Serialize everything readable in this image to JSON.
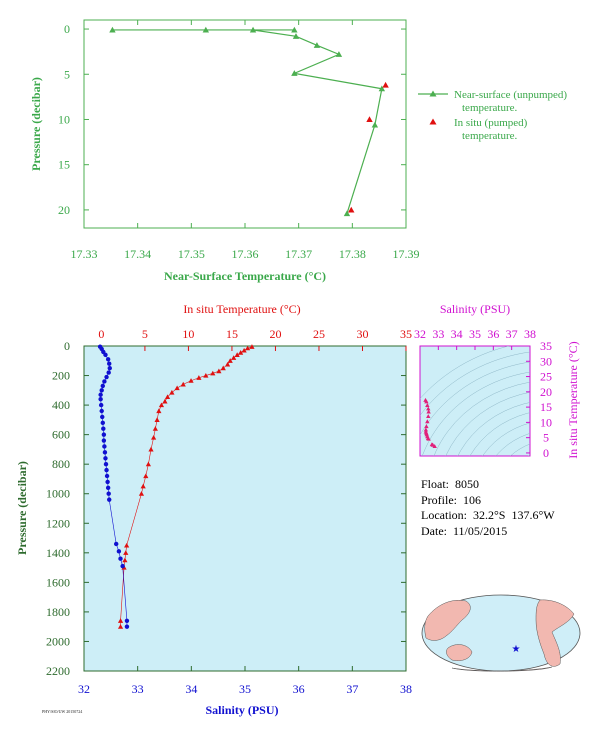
{
  "colors": {
    "green": "#4caf50",
    "green_text": "#3aa84a",
    "red": "#e01010",
    "blue": "#1010d0",
    "magenta": "#d010d0",
    "pink": "#e0207a",
    "panel_bg": "#cdeef7",
    "axis_dark": "#2e6b2e",
    "land": "#f2b8b0",
    "ocean": "#cfeef8"
  },
  "meta": {
    "float": "Float:  8050",
    "profile": "Profile:  106",
    "location": "Location:  32.2°S  137.6°W",
    "date": "Date:  11/05/2015"
  },
  "footer": "PHY/SIO/UW  20150724",
  "chart_data": [
    {
      "type": "line",
      "title": "",
      "xlabel": "Near-Surface Temperature (°C)",
      "ylabel": "Pressure (decibar)",
      "xlim": [
        17.33,
        17.39
      ],
      "ylim": [
        22,
        -1
      ],
      "x_ticks": [
        "17.33",
        "17.34",
        "17.35",
        "17.36",
        "17.37",
        "17.38",
        "17.39"
      ],
      "y_ticks": [
        "0",
        "5",
        "10",
        "15",
        "20"
      ],
      "legend_position": "right",
      "series": [
        {
          "name": "Near-surface (unpumped) temperature.",
          "marker": "triangle",
          "color": "green",
          "points": [
            [
              17.3692,
              0.1
            ],
            [
              17.3353,
              0.1
            ],
            [
              17.3527,
              0.1
            ],
            [
              17.3615,
              0.1
            ],
            [
              17.3695,
              0.8
            ],
            [
              17.3734,
              1.8
            ],
            [
              17.3775,
              2.8
            ],
            [
              17.3692,
              4.9
            ],
            [
              17.3855,
              6.6
            ],
            [
              17.3842,
              10.6
            ],
            [
              17.379,
              20.4
            ]
          ]
        },
        {
          "name": "In situ (pumped) temperature.",
          "marker": "triangle",
          "color": "red",
          "points": [
            [
              17.3862,
              6.2
            ],
            [
              17.3832,
              10.0
            ],
            [
              17.3798,
              20.0
            ]
          ]
        }
      ]
    },
    {
      "type": "line",
      "title": "",
      "xlabel": "Salinity (PSU)",
      "x2label": "In situ Temperature (°C)",
      "ylabel": "Pressure (decibar)",
      "xlim": [
        32,
        38
      ],
      "x2lim": [
        -2,
        35
      ],
      "ylim": [
        2200,
        0
      ],
      "x_ticks": [
        "32",
        "33",
        "34",
        "35",
        "36",
        "37",
        "38"
      ],
      "x2_ticks": [
        "0",
        "5",
        "10",
        "15",
        "20",
        "25",
        "30",
        "35"
      ],
      "y_ticks": [
        "0",
        "200",
        "400",
        "600",
        "800",
        "1000",
        "1200",
        "1400",
        "1600",
        "1800",
        "2000",
        "2200"
      ],
      "series": [
        {
          "name": "In situ Temperature (°C)",
          "axis": "top",
          "color": "red",
          "marker": "triangle",
          "points": [
            [
              17.3,
              5
            ],
            [
              16.8,
              15
            ],
            [
              16.4,
              30
            ],
            [
              16.0,
              45
            ],
            [
              15.6,
              60
            ],
            [
              15.2,
              80
            ],
            [
              14.8,
              100
            ],
            [
              14.5,
              125
            ],
            [
              14.0,
              150
            ],
            [
              13.5,
              170
            ],
            [
              12.8,
              185
            ],
            [
              12.0,
              200
            ],
            [
              11.2,
              215
            ],
            [
              10.3,
              235
            ],
            [
              9.4,
              260
            ],
            [
              8.7,
              285
            ],
            [
              8.1,
              315
            ],
            [
              7.6,
              345
            ],
            [
              7.3,
              375
            ],
            [
              6.9,
              400
            ],
            [
              6.6,
              440
            ],
            [
              6.4,
              500
            ],
            [
              6.2,
              560
            ],
            [
              6.0,
              620
            ],
            [
              5.7,
              700
            ],
            [
              5.4,
              800
            ],
            [
              5.1,
              880
            ],
            [
              4.8,
              950
            ],
            [
              4.6,
              1000
            ],
            [
              2.9,
              1350
            ],
            [
              2.8,
              1400
            ],
            [
              2.7,
              1450
            ],
            [
              2.6,
              1500
            ],
            [
              2.2,
              1860
            ],
            [
              2.2,
              1900
            ]
          ]
        },
        {
          "name": "Salinity (PSU)",
          "axis": "bottom",
          "color": "blue",
          "marker": "circle",
          "points": [
            [
              32.3,
              5
            ],
            [
              32.33,
              20
            ],
            [
              32.36,
              40
            ],
            [
              32.4,
              60
            ],
            [
              32.45,
              90
            ],
            [
              32.47,
              120
            ],
            [
              32.48,
              150
            ],
            [
              32.46,
              180
            ],
            [
              32.42,
              210
            ],
            [
              32.38,
              240
            ],
            [
              32.35,
              270
            ],
            [
              32.33,
              300
            ],
            [
              32.31,
              330
            ],
            [
              32.31,
              360
            ],
            [
              32.32,
              400
            ],
            [
              32.33,
              440
            ],
            [
              32.34,
              480
            ],
            [
              32.35,
              520
            ],
            [
              32.36,
              560
            ],
            [
              32.37,
              600
            ],
            [
              32.37,
              640
            ],
            [
              32.38,
              680
            ],
            [
              32.39,
              720
            ],
            [
              32.4,
              760
            ],
            [
              32.41,
              800
            ],
            [
              32.42,
              840
            ],
            [
              32.43,
              880
            ],
            [
              32.44,
              920
            ],
            [
              32.45,
              960
            ],
            [
              32.46,
              1000
            ],
            [
              32.47,
              1040
            ],
            [
              32.6,
              1340
            ],
            [
              32.65,
              1390
            ],
            [
              32.68,
              1440
            ],
            [
              32.72,
              1490
            ],
            [
              32.8,
              1860
            ],
            [
              32.8,
              1900
            ]
          ]
        }
      ]
    },
    {
      "type": "scatter",
      "title": "",
      "xlabel": "Salinity (PSU)",
      "ylabel": "In situ Temperature (°C)",
      "xlim": [
        32,
        38
      ],
      "ylim": [
        -1,
        35
      ],
      "x_ticks": [
        "32",
        "33",
        "34",
        "35",
        "36",
        "37",
        "38"
      ],
      "y_ticks": [
        "0",
        "5",
        "10",
        "15",
        "20",
        "25",
        "30",
        "35"
      ],
      "series": [
        {
          "name": "",
          "color": "pink",
          "points": [
            [
              32.3,
              17.3
            ],
            [
              32.35,
              16.8
            ],
            [
              32.4,
              15.6
            ],
            [
              32.45,
              14.5
            ],
            [
              32.47,
              13.5
            ],
            [
              32.45,
              12.0
            ],
            [
              32.4,
              10.3
            ],
            [
              32.35,
              8.7
            ],
            [
              32.32,
              7.6
            ],
            [
              32.32,
              6.9
            ],
            [
              32.35,
              6.4
            ],
            [
              32.37,
              6.0
            ],
            [
              32.4,
              5.4
            ],
            [
              32.44,
              4.8
            ],
            [
              32.47,
              4.6
            ],
            [
              32.65,
              2.8
            ],
            [
              32.7,
              2.6
            ],
            [
              32.8,
              2.2
            ]
          ]
        }
      ]
    }
  ]
}
